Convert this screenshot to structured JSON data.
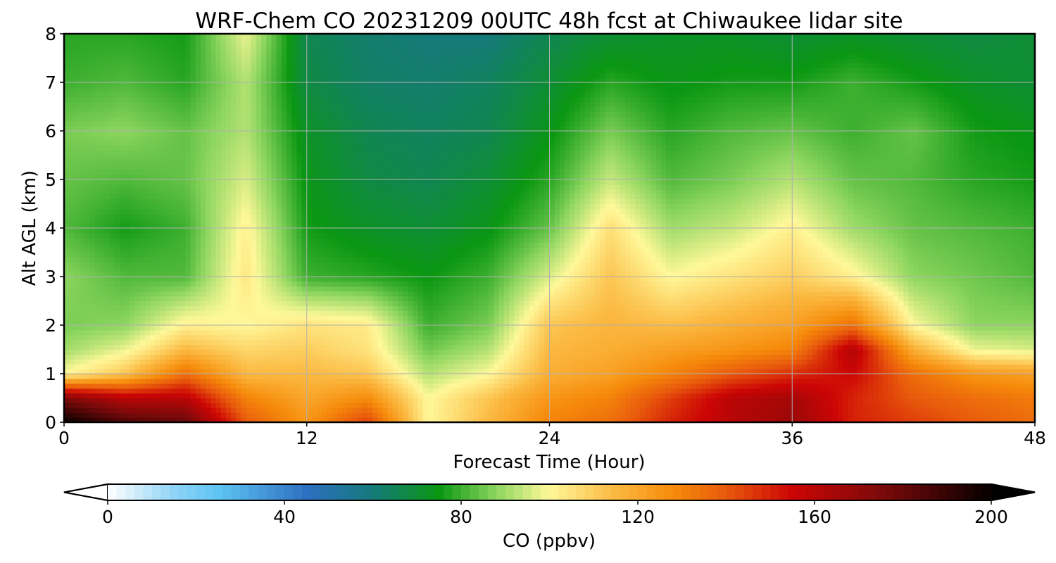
{
  "chart_data": {
    "type": "heatmap",
    "title": "WRF-Chem CO  20231209 00UTC 48h fcst at Chiwaukee lidar site",
    "xlabel": "Forecast Time (Hour)",
    "ylabel": "Alt AGL (km)",
    "xlim": [
      0,
      48
    ],
    "ylim": [
      0,
      8
    ],
    "x_ticks": [
      "0",
      "12",
      "24",
      "36",
      "48"
    ],
    "y_ticks": [
      "0",
      "1",
      "2",
      "3",
      "4",
      "5",
      "6",
      "7",
      "8"
    ],
    "grid": true,
    "x": [
      0,
      3,
      6,
      9,
      12,
      15,
      18,
      21,
      24,
      27,
      30,
      33,
      36,
      39,
      42,
      45,
      48
    ],
    "y": [
      0,
      0.5,
      1,
      1.5,
      2,
      3,
      4,
      5,
      6,
      7,
      8
    ],
    "z": [
      [
        200,
        185,
        180,
        140,
        125,
        145,
        100,
        115,
        130,
        135,
        150,
        160,
        168,
        150,
        145,
        140,
        135
      ],
      [
        175,
        160,
        160,
        130,
        120,
        128,
        100,
        112,
        125,
        130,
        145,
        160,
        165,
        150,
        140,
        135,
        132
      ],
      [
        100,
        112,
        135,
        115,
        115,
        112,
        92,
        100,
        118,
        122,
        130,
        140,
        148,
        155,
        135,
        125,
        122
      ],
      [
        90,
        98,
        115,
        108,
        110,
        105,
        85,
        92,
        115,
        118,
        122,
        125,
        130,
        162,
        118,
        98,
        96
      ],
      [
        86,
        88,
        102,
        100,
        105,
        103,
        80,
        86,
        112,
        116,
        114,
        118,
        122,
        135,
        100,
        88,
        88
      ],
      [
        88,
        82,
        82,
        104,
        80,
        78,
        75,
        80,
        96,
        112,
        100,
        105,
        110,
        102,
        88,
        85,
        82
      ],
      [
        82,
        76,
        80,
        102,
        76,
        72,
        70,
        74,
        84,
        106,
        90,
        94,
        102,
        90,
        84,
        82,
        80
      ],
      [
        84,
        82,
        84,
        96,
        74,
        68,
        66,
        70,
        78,
        94,
        82,
        86,
        92,
        84,
        82,
        78,
        76
      ],
      [
        86,
        88,
        84,
        92,
        72,
        66,
        64,
        66,
        74,
        86,
        78,
        82,
        84,
        80,
        84,
        76,
        74
      ],
      [
        80,
        82,
        78,
        92,
        68,
        63,
        62,
        64,
        70,
        78,
        74,
        76,
        76,
        80,
        76,
        72,
        70
      ],
      [
        78,
        78,
        76,
        98,
        66,
        62,
        60,
        60,
        66,
        70,
        72,
        72,
        70,
        72,
        70,
        68,
        70
      ]
    ],
    "colorbar": {
      "label": "CO  (ppbv)",
      "ticks": [
        "0",
        "40",
        "80",
        "120",
        "160",
        "200"
      ],
      "range": [
        0,
        200
      ],
      "extend": "both",
      "stops": [
        {
          "value": 0,
          "color": "#ffffff"
        },
        {
          "value": 15,
          "color": "#8fd4f7"
        },
        {
          "value": 25,
          "color": "#5ec4f2"
        },
        {
          "value": 45,
          "color": "#2d6fc0"
        },
        {
          "value": 60,
          "color": "#157a7a"
        },
        {
          "value": 75,
          "color": "#0a9712"
        },
        {
          "value": 88,
          "color": "#8ed65f"
        },
        {
          "value": 100,
          "color": "#fff89a"
        },
        {
          "value": 115,
          "color": "#fbb840"
        },
        {
          "value": 128,
          "color": "#f68b0b"
        },
        {
          "value": 140,
          "color": "#e85a0c"
        },
        {
          "value": 155,
          "color": "#cc0505"
        },
        {
          "value": 175,
          "color": "#7d0a0a"
        },
        {
          "value": 200,
          "color": "#050000"
        }
      ]
    }
  }
}
